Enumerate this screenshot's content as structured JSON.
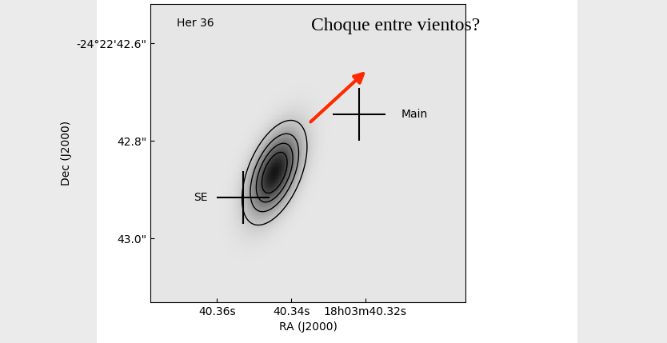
{
  "chart_data": {
    "type": "image",
    "xlabel": "RA (J2000)",
    "ylabel": "Dec (J2000)",
    "xlim": [
      40.378,
      40.293
    ],
    "ylim": [
      43.13,
      42.52
    ],
    "xticks": [
      {
        "value": 40.36,
        "label": "40.36s"
      },
      {
        "value": 40.34,
        "label": "40.34s"
      },
      {
        "value": 40.32,
        "label": "18h03m40.32s"
      }
    ],
    "yticks": [
      {
        "value": 42.6,
        "label": "-24°22'42.6\""
      },
      {
        "value": 42.8,
        "label": "42.8\""
      },
      {
        "value": 43.0,
        "label": "43.0\""
      }
    ],
    "source": {
      "center": [
        40.3445,
        42.865
      ],
      "sigma": [
        0.0045,
        0.055
      ],
      "correlation": 0.5,
      "peak": 1.0
    },
    "contour_levels": [
      0.15,
      0.35,
      0.55,
      0.75
    ],
    "colormap_range": [
      -0.12,
      1.1
    ],
    "positions": [
      {
        "name": "Main",
        "x": 40.3217,
        "y": 42.745
      },
      {
        "name": "SE",
        "x": 40.3529,
        "y": 42.915
      }
    ],
    "label": {
      "text": "Her 36",
      "x": 40.3708,
      "y": 42.559
    },
    "annotation": {
      "text": "Choque entre vientos?",
      "x": 40.3346,
      "y": 42.564,
      "arrow_from": [
        40.3352,
        42.764
      ],
      "arrow_to": [
        40.3194,
        42.654
      ]
    }
  }
}
